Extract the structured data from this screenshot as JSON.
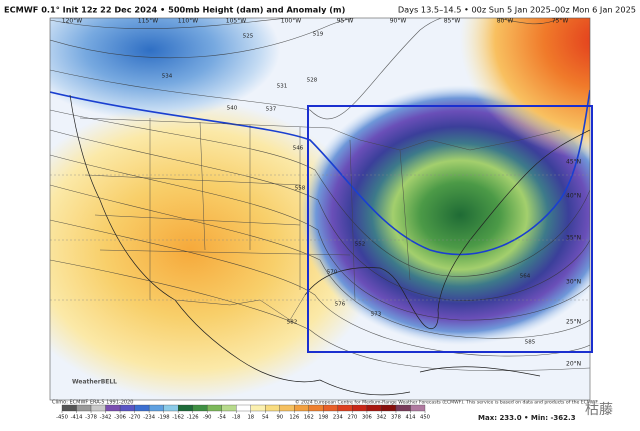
{
  "header": {
    "title": "ECMWF 0.1° Init 12z 22 Dec 2024 • 500mb Height (dam) and Anomaly (m)",
    "valid": "Days 13.5–14.5 • 00z Sun 5 Jan 2025–00z Mon 6 Jan 2025"
  },
  "map": {
    "lon_labels": [
      "120°W",
      "115°W",
      "110°W",
      "105°W",
      "100°W",
      "95°W",
      "90°W",
      "85°W",
      "80°W",
      "75°W",
      "70°W"
    ],
    "lat_labels": [
      "45°N",
      "40°N",
      "35°N",
      "30°N",
      "25°N",
      "20°N"
    ],
    "contour_labels": [
      525,
      519,
      534,
      531,
      528,
      540,
      537,
      546,
      558,
      570,
      576,
      582,
      552,
      564,
      573,
      585
    ],
    "watermark": "WeatherBELL"
  },
  "colorbar": {
    "ticks": [
      -450,
      -414,
      -378,
      -342,
      -306,
      -270,
      -234,
      -198,
      -162,
      -126,
      -90,
      -54,
      -18,
      18,
      54,
      90,
      126,
      162,
      198,
      234,
      270,
      306,
      342,
      378,
      414,
      450
    ]
  },
  "footer": {
    "climo": "Climo: ECMWF ERA-5 1991-2020",
    "copyright": "© 2024 European Centre for Medium-Range Weather Forecasts (ECMWF). This service is based on data and products of the ECMWF.",
    "extremes": "Max: 233.0 • Min: -362.3",
    "mark": "枯藤"
  }
}
